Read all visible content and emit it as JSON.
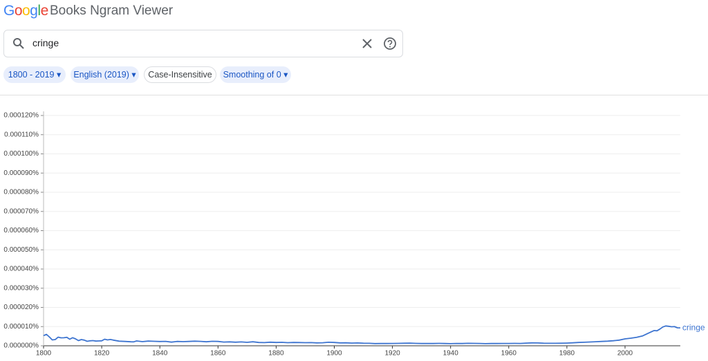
{
  "header": {
    "logo": "Google",
    "title": "Books Ngram Viewer"
  },
  "search": {
    "query": "cringe"
  },
  "chips": [
    "1800 - 2019",
    "English (2019)",
    "Case-Insensitive",
    "Smoothing of 0"
  ],
  "chart_data": {
    "type": "line",
    "x": [
      1800,
      1801,
      1802,
      1803,
      1804,
      1805,
      1806,
      1807,
      1808,
      1809,
      1810,
      1811,
      1812,
      1813,
      1814,
      1815,
      1816,
      1817,
      1818,
      1819,
      1820,
      1821,
      1822,
      1823,
      1824,
      1826,
      1828,
      1830,
      1831,
      1832,
      1834,
      1836,
      1838,
      1840,
      1842,
      1844,
      1846,
      1848,
      1850,
      1852,
      1854,
      1856,
      1858,
      1860,
      1862,
      1864,
      1866,
      1868,
      1870,
      1872,
      1874,
      1876,
      1878,
      1880,
      1882,
      1884,
      1886,
      1888,
      1890,
      1892,
      1894,
      1896,
      1898,
      1900,
      1902,
      1904,
      1906,
      1908,
      1910,
      1912,
      1914,
      1916,
      1918,
      1920,
      1922,
      1924,
      1926,
      1928,
      1930,
      1932,
      1934,
      1936,
      1938,
      1940,
      1942,
      1944,
      1946,
      1948,
      1950,
      1952,
      1954,
      1956,
      1958,
      1960,
      1962,
      1964,
      1966,
      1968,
      1970,
      1972,
      1974,
      1976,
      1978,
      1980,
      1982,
      1984,
      1986,
      1988,
      1990,
      1992,
      1994,
      1996,
      1998,
      2000,
      2002,
      2004,
      2006,
      2008,
      2010,
      2011,
      2012,
      2013,
      2014,
      2015,
      2016,
      2017,
      2018,
      2019
    ],
    "series": [
      {
        "name": "cringe",
        "color": "#3d74d0",
        "values": [
          5.3e-06,
          5.95e-06,
          4.6e-06,
          3.06e-06,
          3.24e-06,
          4.5e-06,
          4.14e-06,
          4.2e-06,
          4.43e-06,
          3.42e-06,
          4.2e-06,
          3.6e-06,
          2.7e-06,
          3.24e-06,
          2.95e-06,
          2.34e-06,
          2.6e-06,
          2.7e-06,
          2.45e-06,
          2.52e-06,
          2.6e-06,
          3.42e-06,
          3.06e-06,
          3.3e-06,
          2.95e-06,
          2.41e-06,
          2.27e-06,
          2.09e-06,
          2.05e-06,
          2.52e-06,
          2.16e-06,
          2.45e-06,
          2.34e-06,
          2.23e-06,
          2.3e-06,
          1.91e-06,
          2.27e-06,
          2.16e-06,
          2.27e-06,
          2.41e-06,
          2.3e-06,
          2.09e-06,
          2.34e-06,
          2.27e-06,
          1.95e-06,
          2.05e-06,
          1.87e-06,
          2.02e-06,
          1.8e-06,
          2.09e-06,
          1.73e-06,
          1.66e-06,
          1.87e-06,
          1.73e-06,
          1.8e-06,
          1.62e-06,
          1.73e-06,
          1.69e-06,
          1.62e-06,
          1.66e-06,
          1.51e-06,
          1.59e-06,
          1.84e-06,
          1.73e-06,
          1.51e-06,
          1.55e-06,
          1.41e-06,
          1.48e-06,
          1.33e-06,
          1.3e-06,
          1.15e-06,
          1.19e-06,
          1.19e-06,
          1.23e-06,
          1.26e-06,
          1.33e-06,
          1.37e-06,
          1.26e-06,
          1.19e-06,
          1.23e-06,
          1.19e-06,
          1.26e-06,
          1.19e-06,
          1.12e-06,
          1.23e-06,
          1.19e-06,
          1.3e-06,
          1.26e-06,
          1.23e-06,
          1.12e-06,
          1.19e-06,
          1.19e-06,
          1.23e-06,
          1.23e-06,
          1.26e-06,
          1.23e-06,
          1.37e-06,
          1.51e-06,
          1.48e-06,
          1.33e-06,
          1.3e-06,
          1.3e-06,
          1.33e-06,
          1.41e-06,
          1.55e-06,
          1.73e-06,
          1.84e-06,
          1.98e-06,
          2.13e-06,
          2.27e-06,
          2.41e-06,
          2.63e-06,
          2.95e-06,
          3.6e-06,
          3.96e-06,
          4.4e-06,
          5.12e-06,
          6.56e-06,
          7.93e-06,
          7.82e-06,
          8.72e-06,
          9.8e-06,
          1.034e-05,
          1.016e-05,
          9.91e-06,
          1e-05,
          9.37e-06,
          9.33e-06
        ]
      }
    ],
    "xlim": [
      1800,
      2019
    ],
    "xticks": [
      1800,
      1820,
      1840,
      1860,
      1880,
      1900,
      1920,
      1940,
      1960,
      1980,
      2000
    ],
    "ylim": [
      0,
      0.00012
    ],
    "yticks": [
      {
        "value": 0,
        "label": "0.000000%"
      },
      {
        "value": 1e-05,
        "label": "0.000010%"
      },
      {
        "value": 2e-05,
        "label": "0.000020%"
      },
      {
        "value": 3e-05,
        "label": "0.000030%"
      },
      {
        "value": 4e-05,
        "label": "0.000040%"
      },
      {
        "value": 5e-05,
        "label": "0.000050%"
      },
      {
        "value": 6e-05,
        "label": "0.000060%"
      },
      {
        "value": 7e-05,
        "label": "0.000070%"
      },
      {
        "value": 8e-05,
        "label": "0.000080%"
      },
      {
        "value": 9e-05,
        "label": "0.000090%"
      },
      {
        "value": 0.0001,
        "label": "0.000100%"
      },
      {
        "value": 0.00011,
        "label": "0.000110%"
      },
      {
        "value": 0.00012,
        "label": "0.000120%"
      }
    ],
    "grid": true
  }
}
